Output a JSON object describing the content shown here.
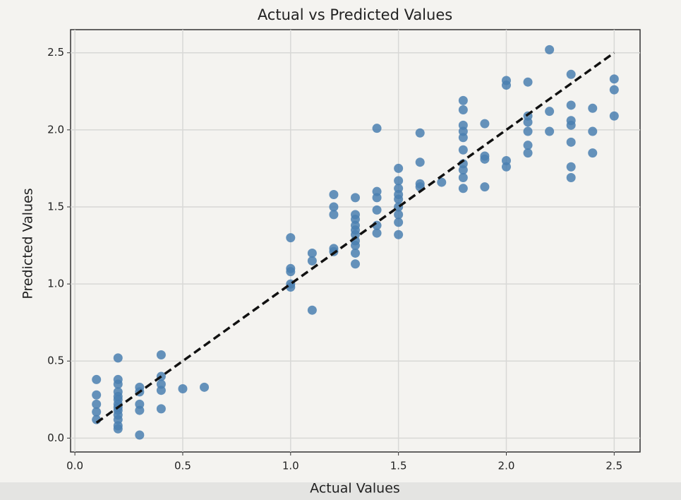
{
  "chart_data": {
    "type": "scatter",
    "title": "Actual vs Predicted Values",
    "xlabel": "Actual Values",
    "ylabel": "Predicted Values",
    "color": "#4a7fb0",
    "grid": true,
    "xlim": [
      -0.02,
      2.62
    ],
    "ylim": [
      -0.09,
      2.65
    ],
    "xticks": [
      {
        "value": 0,
        "label": "0.0"
      },
      0.5,
      {
        "value": 1,
        "label": "1.0"
      },
      1.5,
      {
        "value": 2,
        "label": "2.0"
      },
      2.5
    ],
    "yticks": [
      {
        "value": 0,
        "label": "0.0"
      },
      0.5,
      {
        "value": 1,
        "label": "1.0"
      },
      1.5,
      {
        "value": 2,
        "label": "2.0"
      },
      2.5
    ],
    "reference_line": {
      "x": [
        0.1,
        2.5
      ],
      "y": [
        0.1,
        2.5
      ],
      "color": "#111111"
    },
    "x": [
      0.1,
      0.1,
      0.1,
      0.1,
      0.1,
      0.2,
      0.2,
      0.2,
      0.2,
      0.2,
      0.2,
      0.2,
      0.2,
      0.2,
      0.2,
      0.2,
      0.2,
      0.2,
      0.3,
      0.3,
      0.3,
      0.3,
      0.3,
      0.4,
      0.4,
      0.4,
      0.4,
      0.4,
      0.5,
      0.6,
      1.0,
      1.0,
      1.0,
      1.0,
      1.0,
      1.1,
      1.1,
      1.1,
      1.2,
      1.2,
      1.2,
      1.2,
      1.2,
      1.3,
      1.3,
      1.3,
      1.3,
      1.3,
      1.3,
      1.3,
      1.3,
      1.3,
      1.3,
      1.4,
      1.4,
      1.4,
      1.4,
      1.4,
      1.4,
      1.5,
      1.5,
      1.5,
      1.5,
      1.5,
      1.5,
      1.5,
      1.5,
      1.5,
      1.6,
      1.6,
      1.6,
      1.6,
      1.7,
      1.8,
      1.8,
      1.8,
      1.8,
      1.8,
      1.8,
      1.8,
      1.8,
      1.8,
      1.8,
      1.9,
      1.9,
      1.9,
      1.9,
      2.0,
      2.0,
      2.0,
      2.0,
      2.1,
      2.1,
      2.1,
      2.1,
      2.1,
      2.1,
      2.2,
      2.2,
      2.2,
      2.3,
      2.3,
      2.3,
      2.3,
      2.3,
      2.3,
      2.3,
      2.4,
      2.4,
      2.4,
      2.5,
      2.5,
      2.5
    ],
    "values": [
      0.38,
      0.28,
      0.22,
      0.17,
      0.12,
      0.52,
      0.38,
      0.35,
      0.3,
      0.27,
      0.25,
      0.22,
      0.2,
      0.18,
      0.15,
      0.12,
      0.08,
      0.06,
      0.33,
      0.3,
      0.22,
      0.18,
      0.02,
      0.54,
      0.4,
      0.35,
      0.31,
      0.19,
      0.32,
      0.33,
      1.3,
      1.1,
      1.08,
      1.0,
      0.98,
      1.2,
      1.15,
      0.83,
      1.58,
      1.5,
      1.45,
      1.23,
      1.21,
      1.56,
      1.45,
      1.42,
      1.38,
      1.35,
      1.32,
      1.28,
      1.25,
      1.2,
      1.13,
      2.01,
      1.6,
      1.56,
      1.48,
      1.38,
      1.33,
      1.75,
      1.67,
      1.62,
      1.58,
      1.55,
      1.5,
      1.45,
      1.4,
      1.32,
      1.98,
      1.79,
      1.65,
      1.63,
      1.66,
      2.19,
      2.13,
      2.03,
      1.99,
      1.95,
      1.87,
      1.78,
      1.74,
      1.69,
      1.62,
      2.04,
      1.83,
      1.81,
      1.63,
      2.32,
      2.29,
      1.8,
      1.76,
      2.31,
      2.09,
      2.05,
      1.99,
      1.9,
      1.85,
      2.52,
      2.12,
      1.99,
      2.36,
      2.16,
      2.06,
      2.03,
      1.92,
      1.76,
      1.69,
      2.14,
      1.99,
      1.85,
      2.33,
      2.26,
      2.09
    ]
  }
}
